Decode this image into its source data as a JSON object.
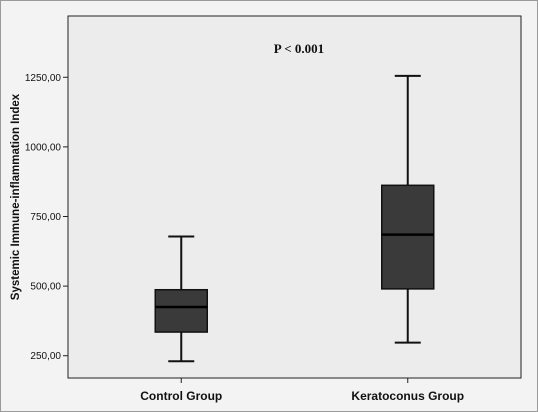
{
  "chart_data": {
    "type": "box",
    "ylabel": "Systemic Immune-inflammation Index",
    "xlabel": "",
    "annotation": "P < 0.001",
    "ylim": [
      170,
      1470
    ],
    "yticks": [
      250,
      500,
      750,
      1000,
      1250
    ],
    "ytick_labels": [
      "250,00",
      "500,00",
      "750,00",
      "1000,00",
      "1250,00"
    ],
    "categories": [
      "Control Group",
      "Keratoconus Group"
    ],
    "boxes": [
      {
        "category": "Control Group",
        "min": 230,
        "q1": 335,
        "median": 425,
        "q3": 487,
        "max": 678
      },
      {
        "category": "Keratoconus Group",
        "min": 297,
        "q1": 490,
        "median": 685,
        "q3": 862,
        "max": 1255
      }
    ],
    "grid": false,
    "box_fill": "#3a3a3a",
    "plot_background": "#ececec",
    "background": "#f3f3f3"
  }
}
